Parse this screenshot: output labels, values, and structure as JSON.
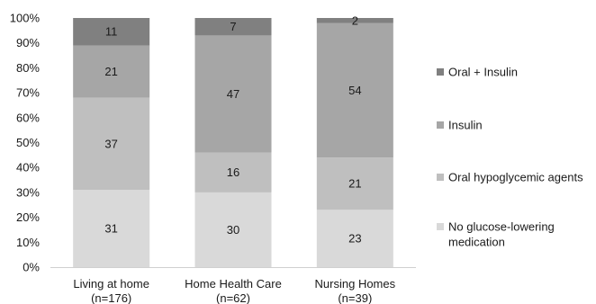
{
  "chart_data": {
    "type": "bar",
    "stacked": true,
    "percent": true,
    "categories": [
      [
        "Living at home",
        "(n=176)"
      ],
      [
        "Home Health Care",
        "(n=62)"
      ],
      [
        "Nursing Homes",
        "(n=39)"
      ]
    ],
    "series": [
      {
        "name": "No glucose-lowering medication",
        "legend_lines": [
          "No glucose-lowering",
          "medication"
        ],
        "color": "#d9d9d9",
        "values": [
          31,
          30,
          23
        ]
      },
      {
        "name": "Oral hypoglycemic agents",
        "legend_lines": [
          "Oral hypoglycemic agents"
        ],
        "color": "#bfbfbf",
        "values": [
          37,
          16,
          21
        ]
      },
      {
        "name": "Insulin",
        "legend_lines": [
          "Insulin"
        ],
        "color": "#a6a6a6",
        "values": [
          21,
          47,
          54
        ]
      },
      {
        "name": "Oral + Insulin",
        "legend_lines": [
          "Oral + Insulin"
        ],
        "color": "#808080",
        "values": [
          11,
          7,
          2
        ]
      }
    ],
    "yticks": [
      "0%",
      "10%",
      "20%",
      "30%",
      "40%",
      "50%",
      "60%",
      "70%",
      "80%",
      "90%",
      "100%"
    ],
    "ylim": [
      0,
      100
    ],
    "grid": false,
    "legend_position": "right"
  }
}
